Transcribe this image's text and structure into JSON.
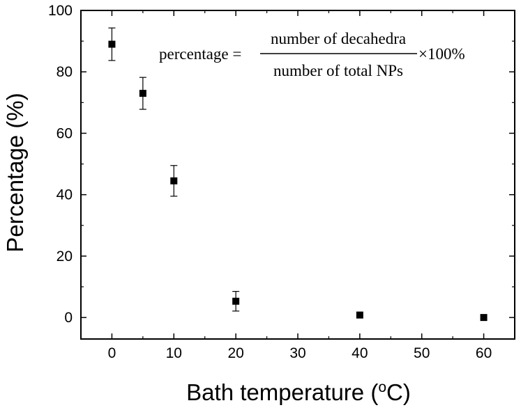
{
  "chart_data": {
    "type": "scatter",
    "xlabel": "Bath temperature (",
    "xlabel_sup": "o",
    "xlabel_tail": "C)",
    "ylabel": "Percentage (%)",
    "xlim": [
      -5,
      65
    ],
    "ylim": [
      -7,
      100
    ],
    "x_ticks": [
      0,
      10,
      20,
      30,
      40,
      50,
      60
    ],
    "x_minor_ticks": [
      -5,
      5,
      15,
      25,
      35,
      45,
      55,
      65
    ],
    "y_ticks": [
      0,
      20,
      40,
      60,
      80,
      100
    ],
    "y_minor_ticks": [
      10,
      30,
      50,
      70,
      90
    ],
    "grid": false,
    "marker": "square",
    "marker_color": "#000000",
    "series": [
      {
        "x": [
          0,
          5,
          10,
          20,
          40,
          60
        ],
        "y": [
          89,
          73,
          44.5,
          5.3,
          0.8,
          0
        ],
        "error": [
          5.3,
          5.2,
          5.0,
          3.2,
          0,
          0
        ]
      }
    ],
    "annotation": {
      "lhs": "percentage =",
      "numerator": "number of decahedra",
      "denominator": "number of total NPs",
      "rhs": "×100%"
    }
  }
}
